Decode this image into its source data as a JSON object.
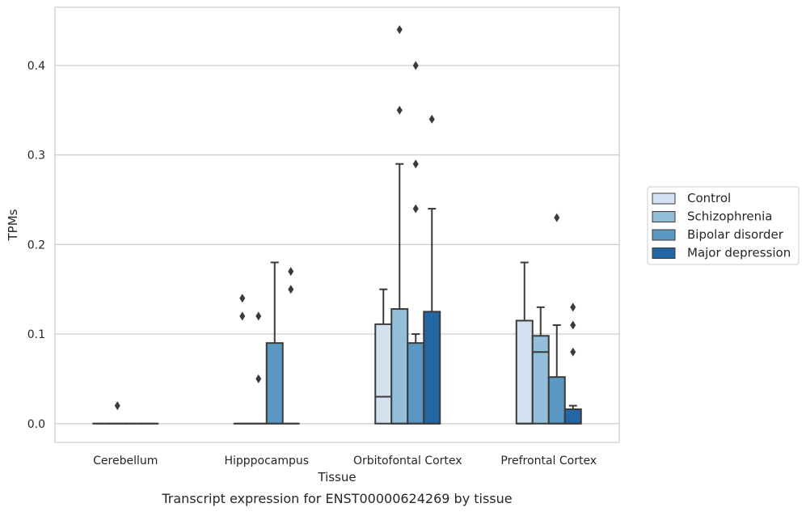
{
  "chart_data": {
    "type": "box",
    "x_axis_title": "Tissue",
    "y_axis_title": "TPMs",
    "caption": "Transcript expression for ENST00000624269 by tissue",
    "categories": [
      "Cerebellum",
      "Hipppocampus",
      "Orbitofontal Cortex",
      "Prefrontal Cortex"
    ],
    "ylim": [
      -0.021,
      0.465
    ],
    "y_ticks": [
      {
        "value": 0.0,
        "label": "0.0"
      },
      {
        "value": 0.1,
        "label": "0.1"
      },
      {
        "value": 0.2,
        "label": "0.2"
      },
      {
        "value": 0.3,
        "label": "0.3"
      },
      {
        "value": 0.4,
        "label": "0.4"
      }
    ],
    "grid": "horizontal",
    "legend_position": "right",
    "series": [
      {
        "name": "Control",
        "color": "#d3e2f0"
      },
      {
        "name": "Schizophrenia",
        "color": "#93bfda"
      },
      {
        "name": "Bipolar disorder",
        "color": "#5b97c3"
      },
      {
        "name": "Major depression",
        "color": "#2465a3"
      }
    ],
    "boxes": [
      {
        "category": "Cerebellum",
        "series": "Control",
        "whisker_low": 0,
        "q1": 0,
        "median": 0,
        "q3": 0,
        "whisker_high": 0,
        "outliers": []
      },
      {
        "category": "Cerebellum",
        "series": "Schizophrenia",
        "whisker_low": 0,
        "q1": 0,
        "median": 0,
        "q3": 0,
        "whisker_high": 0,
        "outliers": [
          0.02
        ]
      },
      {
        "category": "Cerebellum",
        "series": "Bipolar disorder",
        "whisker_low": 0,
        "q1": 0,
        "median": 0,
        "q3": 0,
        "whisker_high": 0,
        "outliers": []
      },
      {
        "category": "Cerebellum",
        "series": "Major depression",
        "whisker_low": 0,
        "q1": 0,
        "median": 0,
        "q3": 0,
        "whisker_high": 0,
        "outliers": []
      },
      {
        "category": "Hipppocampus",
        "series": "Control",
        "whisker_low": 0,
        "q1": 0,
        "median": 0,
        "q3": 0,
        "whisker_high": 0,
        "outliers": [
          0.14,
          0.12
        ]
      },
      {
        "category": "Hipppocampus",
        "series": "Schizophrenia",
        "whisker_low": 0,
        "q1": 0,
        "median": 0,
        "q3": 0,
        "whisker_high": 0,
        "outliers": [
          0.12,
          0.05
        ]
      },
      {
        "category": "Hipppocampus",
        "series": "Bipolar disorder",
        "whisker_low": 0,
        "q1": 0,
        "median": 0,
        "q3": 0.09,
        "whisker_high": 0.18,
        "outliers": []
      },
      {
        "category": "Hipppocampus",
        "series": "Major depression",
        "whisker_low": 0,
        "q1": 0,
        "median": 0,
        "q3": 0,
        "whisker_high": 0,
        "outliers": [
          0.17,
          0.15
        ]
      },
      {
        "category": "Orbitofontal Cortex",
        "series": "Control",
        "whisker_low": 0,
        "q1": 0,
        "median": 0.03,
        "q3": 0.111,
        "whisker_high": 0.15,
        "outliers": []
      },
      {
        "category": "Orbitofontal Cortex",
        "series": "Schizophrenia",
        "whisker_low": 0,
        "q1": 0,
        "median": 0,
        "q3": 0.128,
        "whisker_high": 0.29,
        "outliers": [
          0.44,
          0.35
        ]
      },
      {
        "category": "Orbitofontal Cortex",
        "series": "Bipolar disorder",
        "whisker_low": 0,
        "q1": 0,
        "median": 0,
        "q3": 0.09,
        "whisker_high": 0.1,
        "outliers": [
          0.4,
          0.29,
          0.24
        ]
      },
      {
        "category": "Orbitofontal Cortex",
        "series": "Major depression",
        "whisker_low": 0,
        "q1": 0,
        "median": 0,
        "q3": 0.125,
        "whisker_high": 0.24,
        "outliers": [
          0.34
        ]
      },
      {
        "category": "Prefrontal Cortex",
        "series": "Control",
        "whisker_low": 0,
        "q1": 0,
        "median": 0,
        "q3": 0.115,
        "whisker_high": 0.18,
        "outliers": []
      },
      {
        "category": "Prefrontal Cortex",
        "series": "Schizophrenia",
        "whisker_low": 0,
        "q1": 0,
        "median": 0.08,
        "q3": 0.098,
        "whisker_high": 0.13,
        "outliers": []
      },
      {
        "category": "Prefrontal Cortex",
        "series": "Bipolar disorder",
        "whisker_low": 0,
        "q1": 0,
        "median": 0,
        "q3": 0.052,
        "whisker_high": 0.11,
        "outliers": [
          0.23
        ]
      },
      {
        "category": "Prefrontal Cortex",
        "series": "Major depression",
        "whisker_low": 0,
        "q1": 0,
        "median": 0,
        "q3": 0.016,
        "whisker_high": 0.02,
        "outliers": [
          0.13,
          0.11,
          0.08
        ]
      }
    ]
  }
}
